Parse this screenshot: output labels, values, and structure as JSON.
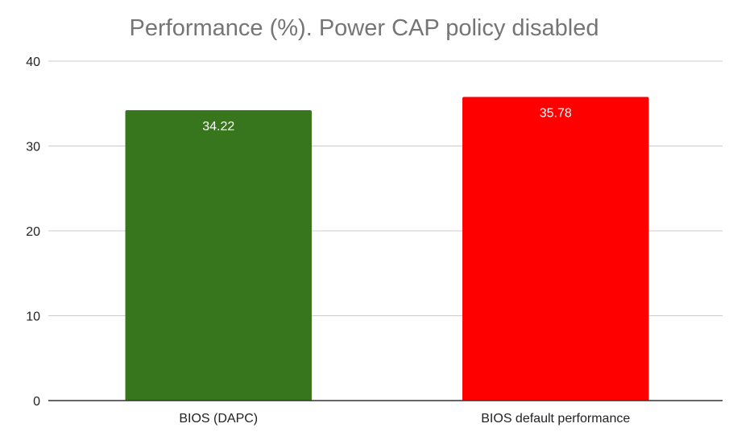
{
  "chart_data": {
    "type": "bar",
    "title": "Performance (%). Power CAP policy disabled",
    "xlabel": "",
    "ylabel": "",
    "categories": [
      "BIOS (DAPC)",
      "BIOS default performance"
    ],
    "values": [
      34.22,
      35.78
    ],
    "data_labels": [
      "34.22",
      "35.78"
    ],
    "bar_colors": [
      "#38761d",
      "#ff0000"
    ],
    "ylim": [
      0,
      40
    ],
    "yticks": [
      0,
      10,
      20,
      30,
      40
    ],
    "ytick_labels": [
      "0",
      "10",
      "20",
      "30",
      "40"
    ],
    "grid": true,
    "legend": "none"
  }
}
